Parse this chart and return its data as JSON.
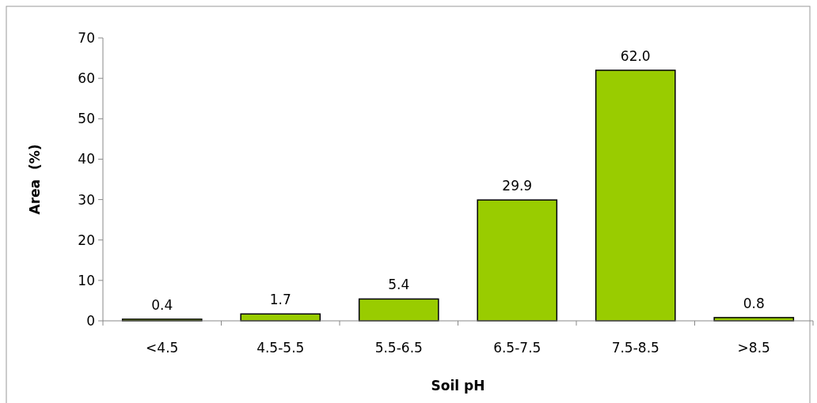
{
  "chart_data": {
    "type": "bar",
    "xlabel": "Soil pH",
    "ylabel": "Area  (%)",
    "categories": [
      "<4.5",
      "4.5-5.5",
      "5.5-6.5",
      "6.5-7.5",
      "7.5-8.5",
      ">8.5"
    ],
    "values": [
      0.4,
      1.7,
      5.4,
      29.9,
      62.0,
      0.8
    ],
    "value_labels": [
      "0.4",
      "1.7",
      "5.4",
      "29.9",
      "62.0",
      "0.8"
    ],
    "color": "#99cc00",
    "ylim": [
      0,
      70
    ],
    "yticks": [
      0,
      10,
      20,
      30,
      40,
      50,
      60,
      70
    ],
    "grid": false
  }
}
